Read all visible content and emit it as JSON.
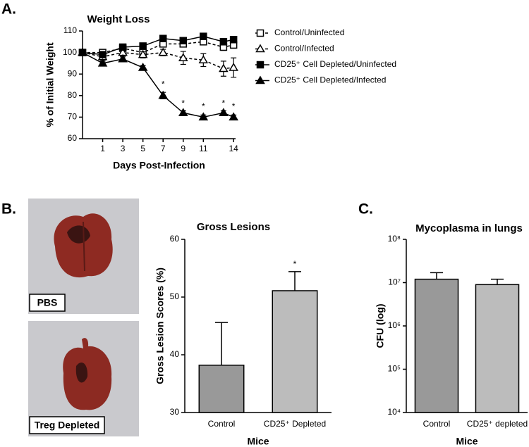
{
  "chart_data": [
    {
      "type": "line",
      "panel_label": "A.",
      "title": "Weight Loss",
      "xlabel": "Days Post-Infection",
      "ylabel": "% of Initial Weight",
      "x": [
        -1,
        1,
        3,
        5,
        7,
        9,
        11,
        13,
        14
      ],
      "xlim": [
        -1,
        14.2
      ],
      "xticks": [
        1,
        3,
        5,
        7,
        9,
        11,
        14
      ],
      "ylim": [
        60,
        110
      ],
      "yticks": [
        60,
        70,
        80,
        90,
        100,
        110
      ],
      "series": [
        {
          "name": "Control/Uninfected",
          "color": "#000000",
          "marker": "square",
          "filled": false,
          "dashed": true,
          "values": [
            100,
            100,
            102,
            100,
            104,
            104,
            105,
            102.5,
            103.5
          ],
          "errors": [
            1,
            1,
            1,
            1.5,
            1.5,
            1.5,
            1.5,
            1.5,
            1.5
          ]
        },
        {
          "name": "Control/Infected",
          "color": "#000000",
          "marker": "triangle",
          "filled": false,
          "dashed": true,
          "values": [
            100,
            98,
            100,
            99,
            100,
            97.5,
            96.5,
            92.5,
            93
          ],
          "errors": [
            1,
            1.5,
            1.5,
            1.5,
            1.5,
            3,
            3,
            3.5,
            4.5
          ]
        },
        {
          "name": "CD25⁺ Cell Depleted/Uninfected",
          "color": "#000000",
          "marker": "square",
          "filled": true,
          "dashed": false,
          "values": [
            100,
            99,
            102.5,
            103,
            106.5,
            105.5,
            107.5,
            105,
            106
          ],
          "errors": [
            1,
            1,
            1,
            1,
            1.5,
            1.5,
            1.5,
            1.5,
            1.5
          ]
        },
        {
          "name": "CD25⁺ Cell Depleted/Infected",
          "color": "#000000",
          "marker": "triangle",
          "filled": true,
          "dashed": false,
          "values": [
            100,
            95,
            97,
            93,
            80,
            72,
            70,
            72,
            70
          ],
          "errors": [
            1,
            1,
            1,
            1,
            1.5,
            1,
            1,
            1,
            1
          ]
        }
      ],
      "annotations": [
        {
          "text": "*",
          "x": 7,
          "y": 85
        },
        {
          "text": "*",
          "x": 9,
          "y": 76.3
        },
        {
          "text": "*",
          "x": 11,
          "y": 74.7
        },
        {
          "text": "*",
          "x": 13,
          "y": 76.3
        },
        {
          "text": "*",
          "x": 14,
          "y": 74.7
        }
      ]
    },
    {
      "type": "bar",
      "panel_label": "B.",
      "title": "Gross Lesions",
      "xlabel": "Mice",
      "ylabel": "Gross Lesion Scores (%)",
      "categories": [
        "Control",
        "CD25⁺ Depleted"
      ],
      "values": [
        38.2,
        51.1
      ],
      "errors": [
        7.4,
        3.3
      ],
      "colors": [
        "#999999",
        "#bcbcbc"
      ],
      "ylim": [
        30,
        60
      ],
      "yticks": [
        30,
        40,
        50,
        60
      ],
      "annotations": [
        {
          "text": "*",
          "category": "CD25⁺ Depleted"
        }
      ]
    },
    {
      "type": "bar",
      "panel_label": "C.",
      "title": "Mycoplasma in lungs",
      "xlabel": "Mice",
      "ylabel": "CFU (log)",
      "log_scale": true,
      "categories": [
        "Control",
        "CD25⁺ depleted"
      ],
      "values": [
        12000000,
        9000000
      ],
      "errors": [
        5000000,
        3000000
      ],
      "colors": [
        "#999999",
        "#bcbcbc"
      ],
      "ylim": [
        10000,
        100000000
      ],
      "yticks": [
        {
          "value": 10000,
          "label": "10⁴"
        },
        {
          "value": 100000,
          "label": "10⁵"
        },
        {
          "value": 1000000,
          "label": "10⁶"
        },
        {
          "value": 10000000,
          "label": "10⁷"
        },
        {
          "value": 100000000,
          "label": "10⁸"
        }
      ]
    }
  ],
  "photos": [
    {
      "label": "PBS"
    },
    {
      "label": "Treg Depleted"
    }
  ]
}
